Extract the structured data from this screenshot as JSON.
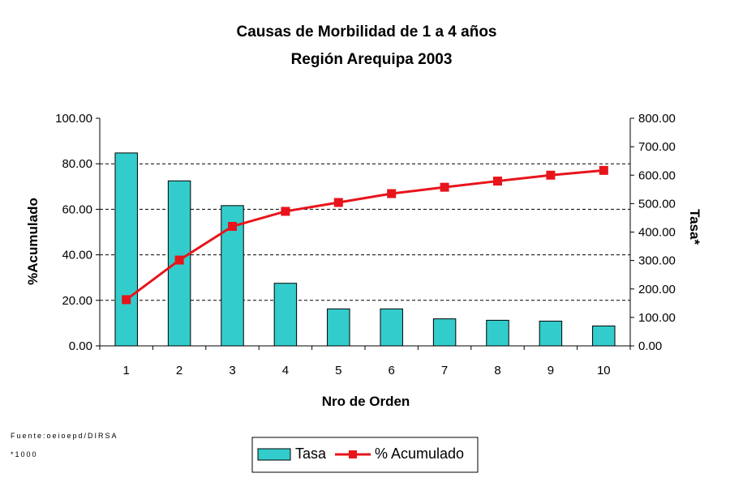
{
  "chart_data": {
    "type": "bar",
    "title": "Causas de Morbilidad de 1 a 4 años",
    "subtitle": "Región Arequipa 2003",
    "xlabel": "Nro de Orden",
    "ylabel_left": "%Acumulado",
    "ylabel_right": "Tasa*",
    "categories": [
      "1",
      "2",
      "3",
      "4",
      "5",
      "6",
      "7",
      "8",
      "9",
      "10"
    ],
    "ylim_left": [
      0,
      100
    ],
    "ylim_right": [
      0,
      800
    ],
    "left_ticks": [
      "0.00",
      "20.00",
      "40.00",
      "60.00",
      "80.00",
      "100.00"
    ],
    "right_ticks": [
      "0.00",
      "100.00",
      "200.00",
      "300.00",
      "400.00",
      "500.00",
      "600.00",
      "700.00",
      "800.00"
    ],
    "grid": "horizontal dashed",
    "legend_position": "bottom",
    "series": [
      {
        "name": "Tasa",
        "type": "bar",
        "axis": "right",
        "color": "#33CCCC",
        "values": [
          678,
          580,
          493,
          220,
          130,
          130,
          95,
          90,
          87,
          70
        ]
      },
      {
        "name": "% Acumulado",
        "type": "line",
        "axis": "left",
        "color": "#E8141B",
        "values": [
          20.3,
          37.7,
          52.5,
          59.1,
          63.0,
          66.9,
          69.7,
          72.4,
          75.0,
          77.1
        ]
      }
    ],
    "source_note": "Fuente:oeioepd/DIRSA",
    "footnote": "*1000"
  }
}
